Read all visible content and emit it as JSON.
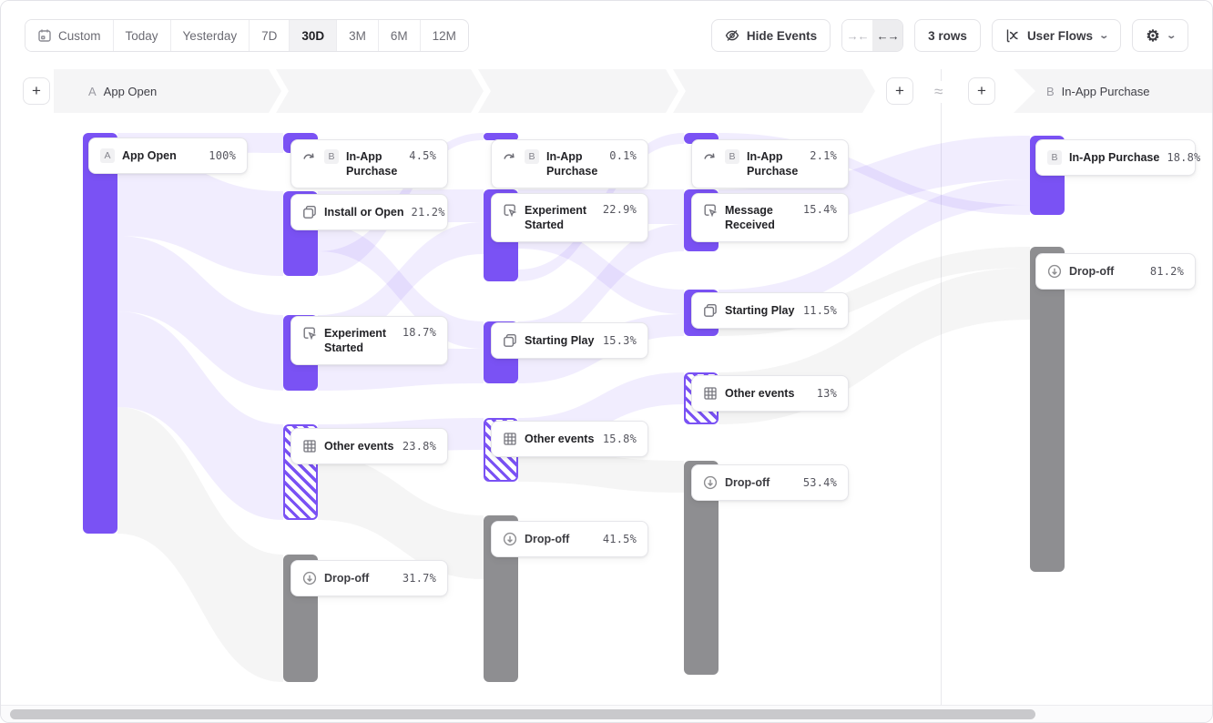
{
  "toolbar": {
    "date_ranges": [
      "Custom",
      "Today",
      "Yesterday",
      "7D",
      "30D",
      "3M",
      "6M",
      "12M"
    ],
    "selected_range": "30D",
    "hide_events_label": "Hide Events",
    "collapse_label": "→←",
    "expand_label": "←→",
    "rows_label": "3 rows",
    "view_label": "User Flows"
  },
  "steps_header": {
    "start": {
      "badge": "A",
      "label": "App Open"
    },
    "end": {
      "badge": "B",
      "label": "In-App Purchase"
    },
    "approx_symbol": "≈",
    "add_step_label": "+"
  },
  "icons": {
    "calendar": "calendar-icon",
    "eye_off": "eye-off-icon",
    "flows_chart": "flows-chart-icon",
    "gear": "⚙",
    "chevron_down": "⌄",
    "jump_arrow": "jump-arrow-icon",
    "copy": "copy-icon",
    "experiment": "experiment-icon",
    "grid": "grid-icon",
    "dropoff": "dropoff-arrow-icon"
  },
  "chart_data": {
    "type": "sankey",
    "title": "User Flows from A (App Open) to B (In-App Purchase)",
    "unit": "percent of users",
    "accent_color": "#7a52f4",
    "dropoff_color": "#8e8e91",
    "columns": [
      {
        "name": "step-1",
        "nodes": [
          {
            "label": "App Open",
            "badge": "A",
            "value": "100%",
            "kind": "start"
          }
        ]
      },
      {
        "name": "step-2",
        "nodes": [
          {
            "label": "In-App Purchase",
            "badge": "B",
            "value": "4.5%",
            "kind": "target",
            "icon": "jump-arrow"
          },
          {
            "label": "Install or Open",
            "value": "21.2%",
            "kind": "event",
            "icon": "copy"
          },
          {
            "label": "Experiment Started",
            "value": "18.7%",
            "kind": "event",
            "icon": "experiment"
          },
          {
            "label": "Other events",
            "value": "23.8%",
            "kind": "other",
            "icon": "grid"
          },
          {
            "label": "Drop-off",
            "value": "31.7%",
            "kind": "dropoff",
            "icon": "dropoff"
          }
        ]
      },
      {
        "name": "step-3",
        "nodes": [
          {
            "label": "In-App Purchase",
            "badge": "B",
            "value": "0.1%",
            "kind": "target",
            "icon": "jump-arrow"
          },
          {
            "label": "Experiment Started",
            "value": "22.9%",
            "kind": "event",
            "icon": "experiment"
          },
          {
            "label": "Starting Play",
            "value": "15.3%",
            "kind": "event",
            "icon": "copy"
          },
          {
            "label": "Other events",
            "value": "15.8%",
            "kind": "other",
            "icon": "grid"
          },
          {
            "label": "Drop-off",
            "value": "41.5%",
            "kind": "dropoff",
            "icon": "dropoff"
          }
        ]
      },
      {
        "name": "step-4",
        "nodes": [
          {
            "label": "In-App Purchase",
            "badge": "B",
            "value": "2.1%",
            "kind": "target",
            "icon": "jump-arrow"
          },
          {
            "label": "Message Received",
            "value": "15.4%",
            "kind": "event",
            "icon": "experiment"
          },
          {
            "label": "Starting Play",
            "value": "11.5%",
            "kind": "event",
            "icon": "copy"
          },
          {
            "label": "Other events",
            "value": "13%",
            "kind": "other",
            "icon": "grid"
          },
          {
            "label": "Drop-off",
            "value": "53.4%",
            "kind": "dropoff",
            "icon": "dropoff"
          }
        ]
      },
      {
        "name": "destination",
        "nodes": [
          {
            "label": "In-App Purchase",
            "badge": "B",
            "value": "18.8%",
            "kind": "target"
          },
          {
            "label": "Drop-off",
            "value": "81.2%",
            "kind": "dropoff",
            "icon": "dropoff"
          }
        ]
      }
    ]
  }
}
